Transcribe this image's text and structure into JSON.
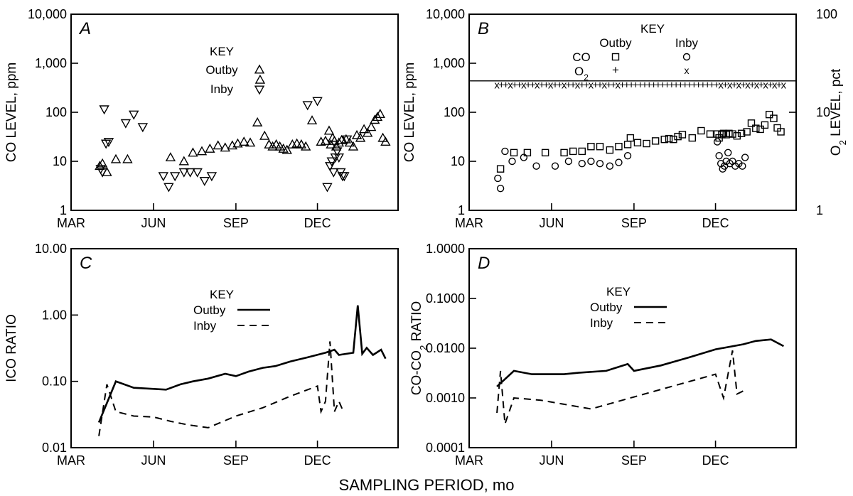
{
  "xlabel": "SAMPLING PERIOD, mo",
  "chart_data": [
    {
      "panel": "A",
      "type": "scatter",
      "yscale": "log",
      "ylim": [
        1,
        10000
      ],
      "ylabel": "CO LEVEL, ppm",
      "yticks": [
        "1",
        "10",
        "100",
        "1,000",
        "10,000"
      ],
      "xticks": [
        "MAR",
        "JUN",
        "SEP",
        "DEC"
      ],
      "key": {
        "title": "KEY",
        "labels": [
          "Outby",
          "Inby"
        ]
      },
      "series": [
        {
          "name": "Outby",
          "marker": "triangle-up",
          "points": [
            [
              "Apr 2",
              8
            ],
            [
              "Apr 5",
              9
            ],
            [
              "Apr 10",
              6
            ],
            [
              "Apr 20",
              11
            ],
            [
              "May 3",
              11
            ],
            [
              "Jun 20",
              12
            ],
            [
              "Jul 5",
              10
            ],
            [
              "Jul 15",
              15
            ],
            [
              "Jul 25",
              16
            ],
            [
              "Aug 3",
              18
            ],
            [
              "Aug 12",
              21
            ],
            [
              "Aug 20",
              19
            ],
            [
              "Aug 28",
              21
            ],
            [
              "Sep 3",
              23
            ],
            [
              "Sep 10",
              25
            ],
            [
              "Sep 17",
              24
            ],
            [
              "Sep 25",
              62
            ],
            [
              "Sep 28",
              460
            ],
            [
              "Oct 3",
              33
            ],
            [
              "Oct 8",
              22
            ],
            [
              "Oct 12",
              20
            ],
            [
              "Oct 16",
              22
            ],
            [
              "Oct 20",
              20
            ],
            [
              "Oct 24",
              18
            ],
            [
              "Oct 28",
              17
            ],
            [
              "Nov 3",
              22
            ],
            [
              "Nov 8",
              23
            ],
            [
              "Nov 13",
              22
            ],
            [
              "Nov 18",
              20
            ],
            [
              "Nov 25",
              68
            ],
            [
              "Dec 5",
              25
            ],
            [
              "Dec 10",
              26
            ],
            [
              "Dec 14",
              42
            ],
            [
              "Dec 16",
              22
            ],
            [
              "Dec 18",
              30
            ],
            [
              "Dec 20",
              26
            ],
            [
              "Dec 22",
              20
            ],
            [
              "Dec 25",
              24
            ],
            [
              "Dec 28",
              27
            ],
            [
              "Jan 2",
              28
            ],
            [
              "Jan 6",
              24
            ],
            [
              "Jan 10",
              20
            ],
            [
              "Jan 14",
              34
            ],
            [
              "Jan 18",
              30
            ],
            [
              "Jan 22",
              45
            ],
            [
              "Jan 26",
              38
            ],
            [
              "Jan 30",
              50
            ],
            [
              "Feb 3",
              70
            ],
            [
              "Feb 6",
              80
            ],
            [
              "Feb 9",
              92
            ],
            [
              "Feb 12",
              30
            ],
            [
              "Feb 15",
              25
            ]
          ]
        },
        {
          "name": "Inby",
          "marker": "triangle-down",
          "points": [
            [
              "Apr 3",
              7
            ],
            [
              "Apr 5",
              6
            ],
            [
              "Apr 7",
              115
            ],
            [
              "Apr 9",
              23
            ],
            [
              "Apr 12",
              25
            ],
            [
              "May 1",
              60
            ],
            [
              "May 10",
              90
            ],
            [
              "May 20",
              50
            ],
            [
              "Jun 12",
              5
            ],
            [
              "Jun 18",
              3
            ],
            [
              "Jun 25",
              5
            ],
            [
              "Jul 5",
              6
            ],
            [
              "Jul 12",
              6
            ],
            [
              "Jul 20",
              6
            ],
            [
              "Jul 28",
              4
            ],
            [
              "Aug 5",
              5
            ],
            [
              "Nov 20",
              140
            ],
            [
              "Dec 1",
              170
            ],
            [
              "Dec 12",
              3
            ],
            [
              "Dec 15",
              8
            ],
            [
              "Dec 17",
              10
            ],
            [
              "Dec 19",
              6
            ],
            [
              "Dec 21",
              12
            ],
            [
              "Dec 23",
              16
            ],
            [
              "Dec 25",
              12
            ],
            [
              "Dec 27",
              6
            ],
            [
              "Dec 29",
              5
            ],
            [
              "Dec 31",
              5
            ],
            [
              "Jan 3",
              28
            ]
          ]
        }
      ]
    },
    {
      "panel": "B",
      "type": "scatter",
      "yscale": "log",
      "ylim": [
        1,
        10000
      ],
      "ylabel": "CO LEVEL, ppm",
      "yticks": [
        "1",
        "10",
        "100",
        "1,000",
        "10,000"
      ],
      "y2label": "O2 LEVEL, pct",
      "y2lim": [
        1,
        100
      ],
      "y2ticks": [
        "1",
        "10",
        "100"
      ],
      "xticks": [
        "MAR",
        "JUN",
        "SEP",
        "DEC"
      ],
      "key": {
        "title": "KEY",
        "columns": [
          "Outby",
          "Inby"
        ],
        "rows": [
          "CO",
          "O2"
        ]
      },
      "o2_reference_line": 20.9,
      "series": [
        {
          "name": "CO Outby",
          "marker": "square",
          "points": [
            [
              "Apr 5",
              7
            ],
            [
              "Apr 20",
              15
            ],
            [
              "May 5",
              15
            ],
            [
              "May 25",
              15
            ],
            [
              "Jun 15",
              15
            ],
            [
              "Jun 25",
              16
            ],
            [
              "Jul 5",
              16
            ],
            [
              "Jul 15",
              20
            ],
            [
              "Jul 25",
              20
            ],
            [
              "Aug 5",
              17
            ],
            [
              "Aug 15",
              20
            ],
            [
              "Aug 25",
              22
            ],
            [
              "Aug 28",
              30
            ],
            [
              "Sep 5",
              24
            ],
            [
              "Sep 15",
              23
            ],
            [
              "Sep 25",
              26
            ],
            [
              "Oct 5",
              28
            ],
            [
              "Oct 10",
              29
            ],
            [
              "Oct 15",
              28
            ],
            [
              "Oct 20",
              32
            ],
            [
              "Oct 25",
              35
            ],
            [
              "Nov 5",
              30
            ],
            [
              "Nov 15",
              42
            ],
            [
              "Nov 25",
              36
            ],
            [
              "Dec 3",
              36
            ],
            [
              "Dec 5",
              30
            ],
            [
              "Dec 8",
              35
            ],
            [
              "Dec 10",
              37
            ],
            [
              "Dec 13",
              35
            ],
            [
              "Dec 16",
              37
            ],
            [
              "Dec 20",
              36
            ],
            [
              "Dec 25",
              33
            ],
            [
              "Dec 30",
              37
            ],
            [
              "Jan 5",
              40
            ],
            [
              "Jan 10",
              60
            ],
            [
              "Jan 15",
              47
            ],
            [
              "Jan 20",
              45
            ],
            [
              "Jan 25",
              55
            ],
            [
              "Jan 30",
              90
            ],
            [
              "Feb 4",
              75
            ],
            [
              "Feb 8",
              48
            ],
            [
              "Feb 12",
              40
            ]
          ]
        },
        {
          "name": "CO Inby",
          "marker": "circle",
          "points": [
            [
              "Apr 2",
              4.5
            ],
            [
              "Apr 5",
              2.8
            ],
            [
              "Apr 10",
              16
            ],
            [
              "Apr 18",
              10
            ],
            [
              "May 1",
              12
            ],
            [
              "May 15",
              8
            ],
            [
              "Jun 5",
              8
            ],
            [
              "Jun 20",
              10
            ],
            [
              "Jul 5",
              9
            ],
            [
              "Jul 15",
              10
            ],
            [
              "Jul 25",
              9
            ],
            [
              "Aug 5",
              8
            ],
            [
              "Aug 15",
              9.5
            ],
            [
              "Aug 25",
              13
            ],
            [
              "Dec 3",
              25
            ],
            [
              "Dec 5",
              13
            ],
            [
              "Dec 7",
              9
            ],
            [
              "Dec 9",
              7
            ],
            [
              "Dec 11",
              8
            ],
            [
              "Dec 13",
              10
            ],
            [
              "Dec 15",
              15
            ],
            [
              "Dec 17",
              9
            ],
            [
              "Dec 20",
              10
            ],
            [
              "Dec 23",
              8
            ],
            [
              "Dec 27",
              9
            ],
            [
              "Dec 31",
              8
            ],
            [
              "Jan 3",
              12
            ]
          ]
        },
        {
          "name": "O2 Outby",
          "marker": "plus",
          "description": "~20.5 pct across period"
        },
        {
          "name": "O2 Inby",
          "marker": "x",
          "description": "~19.5-20.5 pct"
        }
      ]
    },
    {
      "panel": "C",
      "type": "line",
      "yscale": "log",
      "ylim": [
        0.01,
        10
      ],
      "ylabel": "ICO RATIO",
      "yticks": [
        "0.01",
        "0.10",
        "1.00",
        "10.00"
      ],
      "xticks": [
        "MAR",
        "JUN",
        "SEP",
        "DEC"
      ],
      "key": {
        "title": "KEY",
        "labels": [
          "Outby",
          "Inby"
        ]
      },
      "series": [
        {
          "name": "Outby",
          "style": "solid",
          "points": [
            [
              "Apr 1",
              0.024
            ],
            [
              "Apr 20",
              0.1
            ],
            [
              "May 10",
              0.08
            ],
            [
              "Jun 15",
              0.075
            ],
            [
              "Jul 1",
              0.09
            ],
            [
              "Jul 15",
              0.1
            ],
            [
              "Aug 1",
              0.11
            ],
            [
              "Aug 20",
              0.13
            ],
            [
              "Sep 1",
              0.12
            ],
            [
              "Sep 15",
              0.14
            ],
            [
              "Oct 1",
              0.16
            ],
            [
              "Oct 15",
              0.17
            ],
            [
              "Nov 1",
              0.2
            ],
            [
              "Nov 20",
              0.23
            ],
            [
              "Dec 10",
              0.27
            ],
            [
              "Dec 20",
              0.3
            ],
            [
              "Dec 25",
              0.25
            ],
            [
              "Jan 10",
              0.27
            ],
            [
              "Jan 15",
              1.4
            ],
            [
              "Jan 20",
              0.26
            ],
            [
              "Jan 25",
              0.32
            ],
            [
              "Feb 1",
              0.25
            ],
            [
              "Feb 10",
              0.3
            ],
            [
              "Feb 15",
              0.22
            ]
          ]
        },
        {
          "name": "Inby",
          "style": "dashed",
          "points": [
            [
              "Apr 1",
              0.015
            ],
            [
              "Apr 10",
              0.09
            ],
            [
              "Apr 20",
              0.035
            ],
            [
              "May 10",
              0.03
            ],
            [
              "Jun 1",
              0.029
            ],
            [
              "Jun 20",
              0.025
            ],
            [
              "Jul 10",
              0.022
            ],
            [
              "Aug 1",
              0.02
            ],
            [
              "Sep 1",
              0.03
            ],
            [
              "Oct 1",
              0.04
            ],
            [
              "Nov 1",
              0.06
            ],
            [
              "Dec 1",
              0.085
            ],
            [
              "Dec 5",
              0.035
            ],
            [
              "Dec 10",
              0.05
            ],
            [
              "Dec 15",
              0.4
            ],
            [
              "Dec 20",
              0.035
            ],
            [
              "Dec 25",
              0.05
            ],
            [
              "Dec 30",
              0.035
            ]
          ]
        }
      ]
    },
    {
      "panel": "D",
      "type": "line",
      "yscale": "log",
      "ylim": [
        0.0001,
        1
      ],
      "ylabel": "CO-CO2 RATIO",
      "yticks": [
        "0.0001",
        "0.0010",
        "0.0100",
        "0.1000",
        "1.0000"
      ],
      "xticks": [
        "MAR",
        "JUN",
        "SEP",
        "DEC"
      ],
      "key": {
        "title": "KEY",
        "labels": [
          "Outby",
          "Inby"
        ]
      },
      "series": [
        {
          "name": "Outby",
          "style": "solid",
          "points": [
            [
              "Apr 1",
              0.0017
            ],
            [
              "Apr 20",
              0.0035
            ],
            [
              "May 10",
              0.003
            ],
            [
              "Jun 15",
              0.003
            ],
            [
              "Jul 1",
              0.0032
            ],
            [
              "Aug 1",
              0.0035
            ],
            [
              "Aug 25",
              0.0048
            ],
            [
              "Sep 1",
              0.0035
            ],
            [
              "Oct 1",
              0.0045
            ],
            [
              "Nov 1",
              0.0065
            ],
            [
              "Dec 1",
              0.0095
            ],
            [
              "Jan 1",
              0.012
            ],
            [
              "Jan 15",
              0.014
            ],
            [
              "Feb 1",
              0.015
            ],
            [
              "Feb 15",
              0.011
            ]
          ]
        },
        {
          "name": "Inby",
          "style": "dashed",
          "points": [
            [
              "Apr 1",
              0.0005
            ],
            [
              "Apr 5",
              0.0035
            ],
            [
              "Apr 10",
              0.0003
            ],
            [
              "Apr 20",
              0.001
            ],
            [
              "May 20",
              0.0009
            ],
            [
              "Jul 15",
              0.0006
            ],
            [
              "Dec 1",
              0.003
            ],
            [
              "Dec 10",
              0.001
            ],
            [
              "Dec 20",
              0.009
            ],
            [
              "Dec 25",
              0.0012
            ],
            [
              "Jan 5",
              0.0015
            ]
          ]
        }
      ]
    }
  ]
}
